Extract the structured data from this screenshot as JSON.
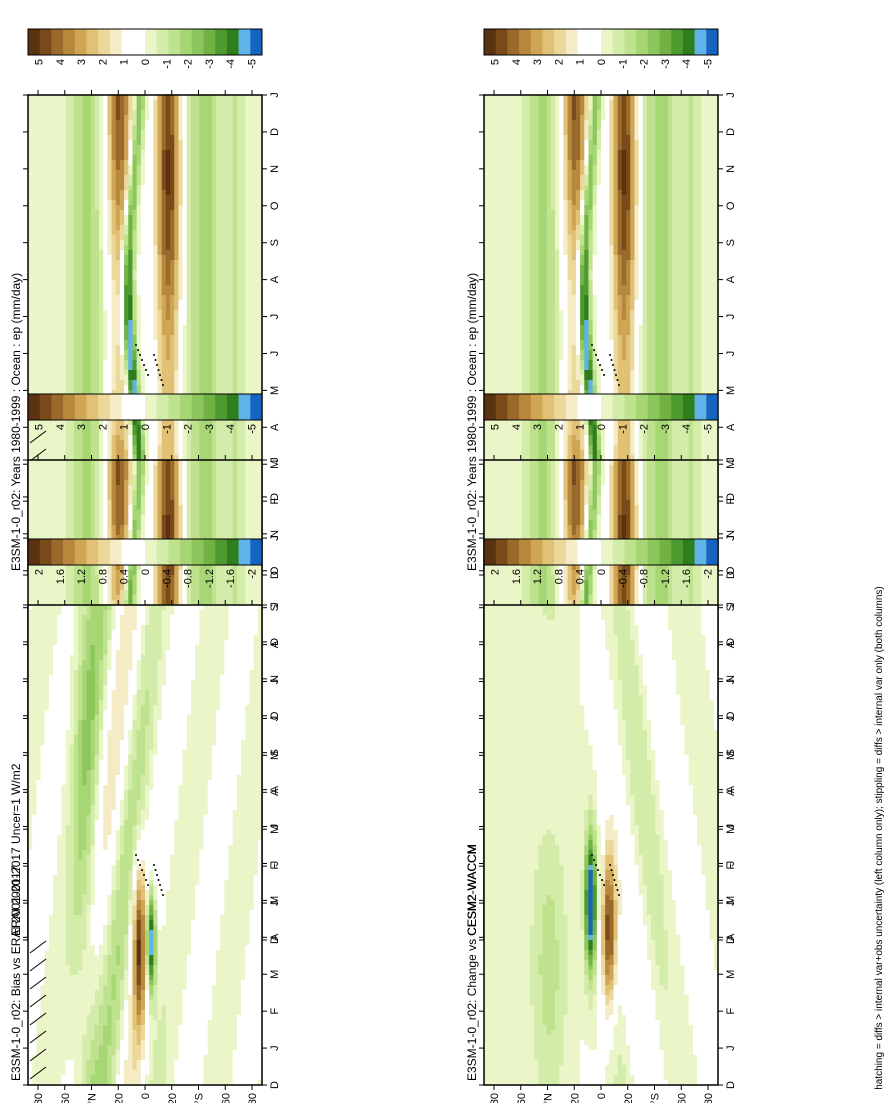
{
  "figure": {
    "footnote": "hatching = diffs > internal var+obs uncertainty (left column only); stippling = diffs > internal var only (both columns)"
  },
  "axes": {
    "lat_ticks": [
      "80",
      "60",
      "°N",
      "20",
      "0",
      "20",
      "°S",
      "60",
      "80"
    ],
    "month_ticks": [
      "D",
      "J",
      "F",
      "M",
      "A",
      "M",
      "J",
      "J",
      "A",
      "S",
      "O",
      "N",
      "D",
      "J"
    ]
  },
  "colors": {
    "main_scale": [
      "#5a3210",
      "#7a4a1a",
      "#9a6a2a",
      "#b8883c",
      "#cfa656",
      "#e0c176",
      "#ecd89a",
      "#f5ebc4",
      "#ffffff",
      "#ffffff",
      "#eaf5c8",
      "#d4ecaa",
      "#bfe28e",
      "#a7d674",
      "#8cc65c",
      "#70b244",
      "#4e9a30",
      "#2f7e1e",
      "#5fb3e6",
      "#1565c0"
    ],
    "diff_scale": [
      "#5a3210",
      "#7a4a1a",
      "#9a6a2a",
      "#b8883c",
      "#cfa656",
      "#e0c176",
      "#ecd89a",
      "#f5ebc4",
      "#ffffff",
      "#ffffff",
      "#eaf5c8",
      "#d4ecaa",
      "#bfe28e",
      "#a7d674",
      "#8cc65c",
      "#70b244",
      "#4e9a30",
      "#2f7e1e",
      "#5fb3e6",
      "#1565c0"
    ]
  },
  "chart_data": [
    {
      "type": "heatmap",
      "panel": "top-left",
      "title": "E3SM-1-0_r02: Years 1980-1999 : Ocean : ep (mm/day)",
      "colorbar_ticks": [
        "5",
        "4",
        "3",
        "2",
        "1",
        "0",
        "-1",
        "-2",
        "-3",
        "-4",
        "-5"
      ],
      "colorbar_range": [
        -5,
        5
      ],
      "kind": "model",
      "hatching": true,
      "stippling": true
    },
    {
      "type": "heatmap",
      "panel": "top-right",
      "title": "E3SM-1-0_r02: Years 1980-1999 : Ocean : ep (mm/day)",
      "colorbar_ticks": [
        "5",
        "4",
        "3",
        "2",
        "1",
        "0",
        "-1",
        "-2",
        "-3",
        "-4",
        "-5"
      ],
      "colorbar_range": [
        -5,
        5
      ],
      "kind": "model",
      "hatching": false,
      "stippling": true
    },
    {
      "type": "heatmap",
      "panel": "middle-left",
      "title": "ERAI 2001-2017 Uncer=1 W/m2",
      "colorbar_ticks": [
        "5",
        "4",
        "3",
        "2",
        "1",
        "0",
        "-1",
        "-2",
        "-3",
        "-4",
        "-5"
      ],
      "colorbar_range": [
        -5,
        5
      ],
      "kind": "obs",
      "hatching": true,
      "stippling": true
    },
    {
      "type": "heatmap",
      "panel": "middle-right",
      "title": "CESM2-WACCM",
      "colorbar_ticks": [
        "5",
        "4",
        "3",
        "2",
        "1",
        "0",
        "-1",
        "-2",
        "-3",
        "-4",
        "-5"
      ],
      "colorbar_range": [
        -5,
        5
      ],
      "kind": "model2",
      "hatching": false,
      "stippling": true
    },
    {
      "type": "heatmap",
      "panel": "bottom-left",
      "title": "E3SM-1-0_r02: Bias vs ERAI 2001-2017",
      "colorbar_ticks": [
        "2",
        "1.6",
        "1.2",
        "0.8",
        "0.4",
        "0",
        "-0.4",
        "-0.8",
        "-1.2",
        "-1.6",
        "-2"
      ],
      "colorbar_range": [
        -2,
        2
      ],
      "kind": "bias",
      "hatching": true,
      "stippling": true
    },
    {
      "type": "heatmap",
      "panel": "bottom-right",
      "title": "E3SM-1-0_r02: Change vs CESM2-WACCM",
      "colorbar_ticks": [
        "2",
        "1.6",
        "1.2",
        "0.8",
        "0.4",
        "0",
        "-0.4",
        "-0.8",
        "-1.2",
        "-1.6",
        "-2"
      ],
      "colorbar_range": [
        -2,
        2
      ],
      "kind": "change",
      "hatching": false,
      "stippling": true
    }
  ]
}
